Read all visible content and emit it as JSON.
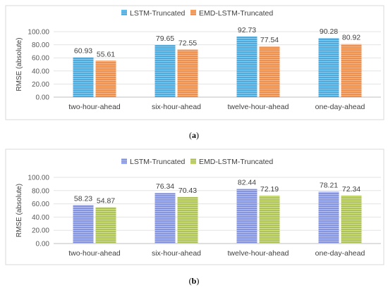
{
  "chart_data": [
    {
      "type": "bar",
      "caption": "a",
      "categories": [
        "two-hour-ahead",
        "six-hour-ahead",
        "twelve-hour-ahead",
        "one-day-ahead"
      ],
      "series": [
        {
          "name": "LSTM-Truncated",
          "values": [
            60.93,
            79.65,
            92.73,
            90.28
          ],
          "color": "#45a6dc",
          "stripe": "#8dcbef"
        },
        {
          "name": "EMD-LSTM-Truncated",
          "values": [
            55.61,
            72.55,
            77.54,
            80.92
          ],
          "color": "#ef8a46",
          "stripe": "#f7b98c"
        }
      ],
      "ylabel": "RMSE (absolute)",
      "ylim": [
        0,
        100
      ],
      "yticks": [
        "0.00",
        "20.00",
        "40.00",
        "60.00",
        "80.00",
        "100.00"
      ],
      "data_labels": [
        [
          "60.93",
          "79.65",
          "92.73",
          "90.28"
        ],
        [
          "55.61",
          "72.55",
          "77.54",
          "80.92"
        ]
      ],
      "legend_position": "top",
      "grid": true
    },
    {
      "type": "bar",
      "caption": "b",
      "categories": [
        "two-hour-ahead",
        "six-hour-ahead",
        "twelve-hour-ahead",
        "one-day-ahead"
      ],
      "series": [
        {
          "name": "LSTM-Truncated",
          "values": [
            58.23,
            76.34,
            82.44,
            78.21
          ],
          "color": "#7f8fe0",
          "stripe": "#b9c2f0"
        },
        {
          "name": "EMD-LSTM-Truncated",
          "values": [
            54.87,
            70.43,
            72.19,
            72.34
          ],
          "color": "#a9c04c",
          "stripe": "#d3e09a"
        }
      ],
      "ylabel": "RMSE (absolute)",
      "ylim": [
        0,
        100
      ],
      "yticks": [
        "0.00",
        "20.00",
        "40.00",
        "60.00",
        "80.00",
        "100.00"
      ],
      "data_labels": [
        [
          "58.23",
          "76.34",
          "82.44",
          "78.21"
        ],
        [
          "54.87",
          "70.43",
          "72.19",
          "72.34"
        ]
      ],
      "legend_position": "top",
      "grid": true
    }
  ]
}
